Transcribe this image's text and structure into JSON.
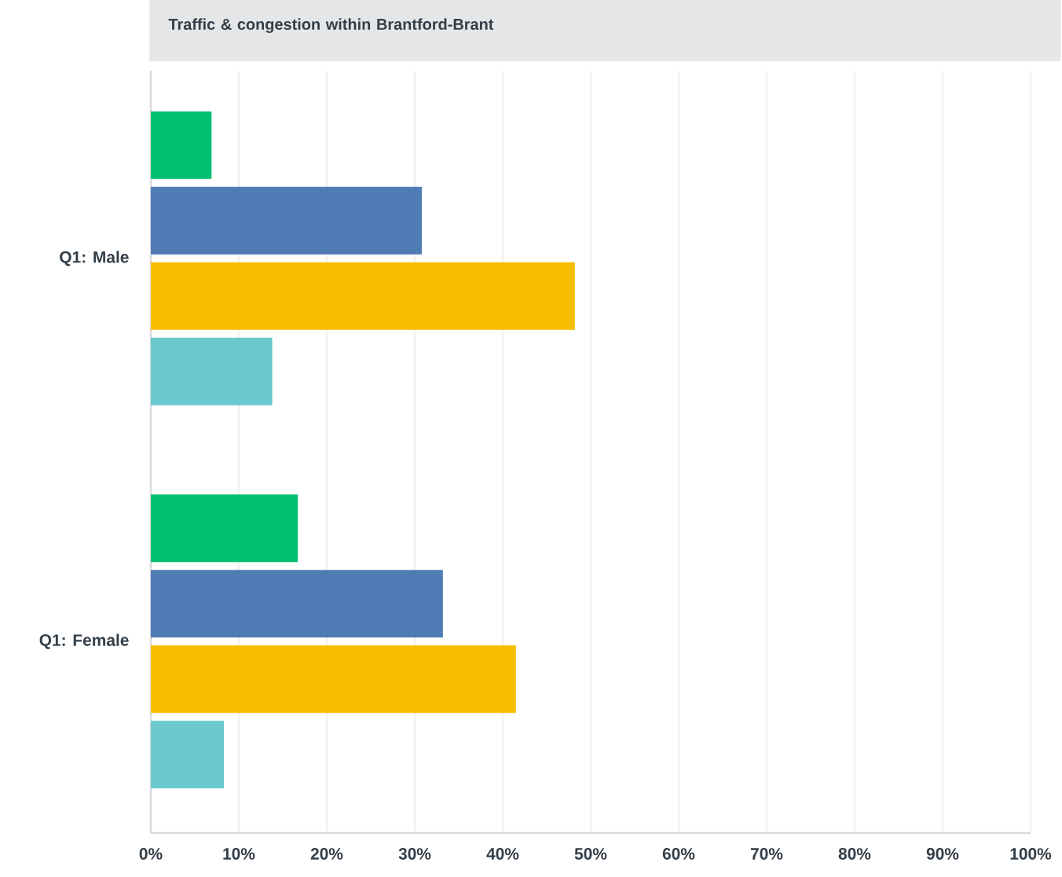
{
  "chart_data": {
    "type": "bar",
    "orientation": "horizontal",
    "title": "Traffic & congestion within Brantford-Brant",
    "categories": [
      "Q1: Male",
      "Q1: Female"
    ],
    "series": [
      {
        "color": "#00bf6f",
        "values": [
          6.9,
          16.7
        ]
      },
      {
        "color": "#507cb6",
        "values": [
          30.8,
          33.2
        ]
      },
      {
        "color": "#f7be00",
        "values": [
          48.2,
          41.5
        ]
      },
      {
        "color": "#6bc8cd",
        "values": [
          13.8,
          8.3
        ]
      }
    ],
    "xlim": [
      0,
      100
    ],
    "xticks": [
      {
        "value": 0,
        "label": "0%"
      },
      {
        "value": 10,
        "label": "10%"
      },
      {
        "value": 20,
        "label": "20%"
      },
      {
        "value": 30,
        "label": "30%"
      },
      {
        "value": 40,
        "label": "40%"
      },
      {
        "value": 50,
        "label": "50%"
      },
      {
        "value": 60,
        "label": "60%"
      },
      {
        "value": 70,
        "label": "70%"
      },
      {
        "value": 80,
        "label": "80%"
      },
      {
        "value": 90,
        "label": "90%"
      },
      {
        "value": 100,
        "label": "100%"
      }
    ],
    "grid": "x"
  }
}
